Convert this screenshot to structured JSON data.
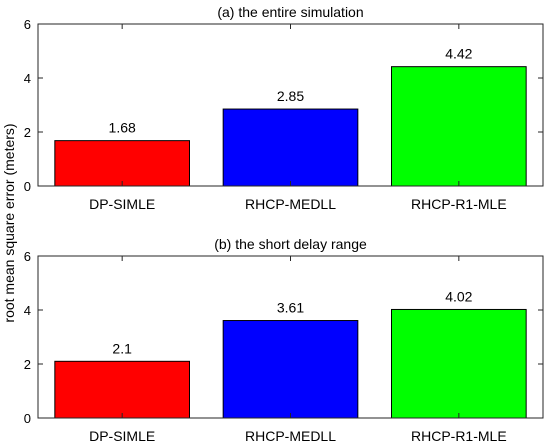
{
  "figure": {
    "ylabel": "root mean square error (meters)"
  },
  "chart_data": [
    {
      "type": "bar",
      "title": "(a) the entire simulation",
      "categories": [
        "DP-SIMLE",
        "RHCP-MEDLL",
        "RHCP-R1-MLE"
      ],
      "values": [
        1.68,
        2.85,
        4.42
      ],
      "value_labels": [
        "1.68",
        "2.85",
        "4.42"
      ],
      "bar_colors": [
        "#ff0000",
        "#0000ff",
        "#00ff00"
      ],
      "ylim": [
        0,
        6
      ],
      "yticks": [
        "0",
        "2",
        "4",
        "6"
      ],
      "grid": false
    },
    {
      "type": "bar",
      "title": "(b) the short delay range",
      "categories": [
        "DP-SIMLE",
        "RHCP-MEDLL",
        "RHCP-R1-MLE"
      ],
      "values": [
        2.1,
        3.61,
        4.02
      ],
      "value_labels": [
        "2.1",
        "3.61",
        "4.02"
      ],
      "bar_colors": [
        "#ff0000",
        "#0000ff",
        "#00ff00"
      ],
      "ylim": [
        0,
        6
      ],
      "yticks": [
        "0",
        "2",
        "4",
        "6"
      ],
      "grid": false
    }
  ]
}
